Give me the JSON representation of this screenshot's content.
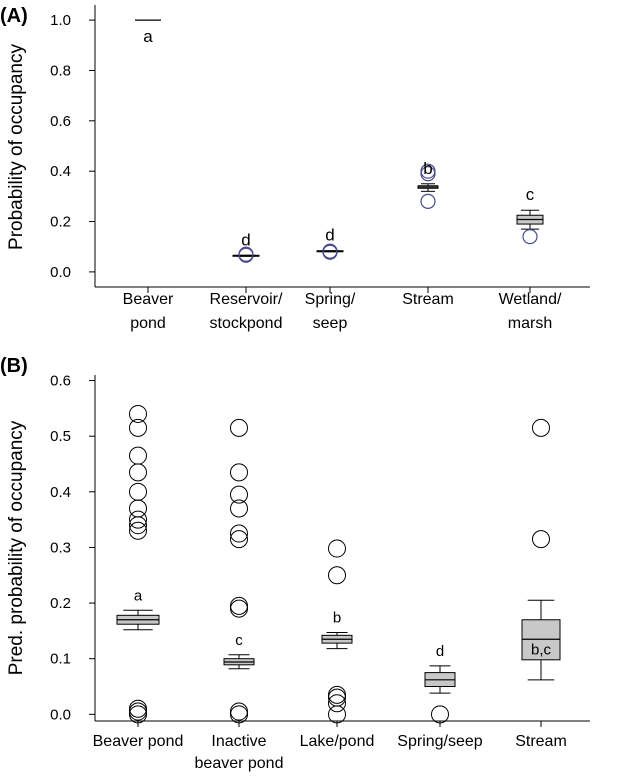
{
  "chart_data": [
    {
      "panel_label": "(A)",
      "type": "box",
      "ylabel": "Probability of occupancy",
      "ylim": [
        -0.06,
        1.06
      ],
      "yticks": [
        "0.0",
        "0.2",
        "0.4",
        "0.6",
        "0.8",
        "1.0"
      ],
      "categories": [
        {
          "label_lines": [
            "Beaver",
            "pond"
          ],
          "q1": 1.0,
          "median": 1.0,
          "q3": 1.0,
          "whisker_low": 1.0,
          "whisker_high": 1.0,
          "outliers": [],
          "letter": "a"
        },
        {
          "label_lines": [
            "Reservoir/",
            "stockpond"
          ],
          "q1": 0.062,
          "median": 0.064,
          "q3": 0.066,
          "whisker_low": 0.062,
          "whisker_high": 0.066,
          "outliers": [
            0.066,
            0.07
          ],
          "letter": "d"
        },
        {
          "label_lines": [
            "Spring/",
            "seep"
          ],
          "q1": 0.08,
          "median": 0.082,
          "q3": 0.084,
          "whisker_low": 0.08,
          "whisker_high": 0.084,
          "outliers": [
            0.078,
            0.082
          ],
          "letter": "d"
        },
        {
          "label_lines": [
            "Stream"
          ],
          "q1": 0.332,
          "median": 0.337,
          "q3": 0.342,
          "whisker_low": 0.32,
          "whisker_high": 0.35,
          "outliers": [
            0.28,
            0.39,
            0.4
          ],
          "letter": "b"
        },
        {
          "label_lines": [
            "Wetland/",
            "marsh"
          ],
          "q1": 0.19,
          "median": 0.208,
          "q3": 0.225,
          "whisker_low": 0.17,
          "whisker_high": 0.245,
          "outliers": [
            0.14
          ],
          "letter": "c"
        }
      ]
    },
    {
      "panel_label": "(B)",
      "type": "box",
      "ylabel": "Pred. probability of occupancy",
      "ylim": [
        -0.012,
        0.61
      ],
      "yticks": [
        "0.0",
        "0.1",
        "0.2",
        "0.3",
        "0.4",
        "0.5",
        "0.6"
      ],
      "categories": [
        {
          "label_lines": [
            "Beaver pond"
          ],
          "q1": 0.162,
          "median": 0.17,
          "q3": 0.178,
          "whisker_low": 0.152,
          "whisker_high": 0.187,
          "outliers": [
            0.0,
            0.005,
            0.01,
            0.33,
            0.34,
            0.35,
            0.37,
            0.4,
            0.435,
            0.465,
            0.515,
            0.54
          ],
          "letter": "a"
        },
        {
          "label_lines": [
            "Inactive",
            "beaver pond"
          ],
          "q1": 0.089,
          "median": 0.094,
          "q3": 0.1,
          "whisker_low": 0.082,
          "whisker_high": 0.107,
          "outliers": [
            0.0,
            0.005,
            0.19,
            0.195,
            0.315,
            0.325,
            0.37,
            0.395,
            0.435,
            0.515
          ],
          "letter": "c"
        },
        {
          "label_lines": [
            "Lake/pond"
          ],
          "q1": 0.128,
          "median": 0.135,
          "q3": 0.142,
          "whisker_low": 0.118,
          "whisker_high": 0.147,
          "outliers": [
            0.0,
            0.02,
            0.03,
            0.035,
            0.25,
            0.298
          ],
          "letter": "b"
        },
        {
          "label_lines": [
            "Spring/seep"
          ],
          "q1": 0.05,
          "median": 0.062,
          "q3": 0.075,
          "whisker_low": 0.038,
          "whisker_high": 0.087,
          "outliers": [
            0.0
          ],
          "letter": "d"
        },
        {
          "label_lines": [
            "Stream"
          ],
          "q1": 0.098,
          "median": 0.135,
          "q3": 0.17,
          "whisker_low": 0.062,
          "whisker_high": 0.205,
          "outliers": [
            0.315,
            0.515
          ],
          "letter": "b,c"
        }
      ]
    }
  ]
}
